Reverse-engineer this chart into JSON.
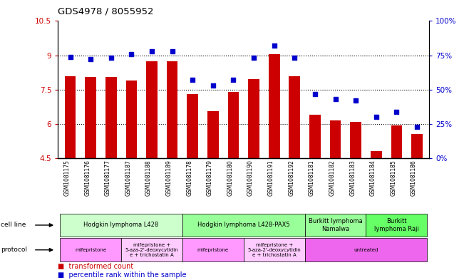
{
  "title": "GDS4978 / 8055952",
  "samples": [
    "GSM1081175",
    "GSM1081176",
    "GSM1081177",
    "GSM1081187",
    "GSM1081188",
    "GSM1081189",
    "GSM1081178",
    "GSM1081179",
    "GSM1081180",
    "GSM1081190",
    "GSM1081191",
    "GSM1081192",
    "GSM1081181",
    "GSM1081182",
    "GSM1081183",
    "GSM1081184",
    "GSM1081185",
    "GSM1081186"
  ],
  "bar_values": [
    8.1,
    8.05,
    8.05,
    7.9,
    8.75,
    8.75,
    7.3,
    6.55,
    7.4,
    7.95,
    9.05,
    8.1,
    6.4,
    6.15,
    6.1,
    4.8,
    5.95,
    5.55
  ],
  "dot_values": [
    74,
    72,
    73,
    76,
    78,
    78,
    57,
    53,
    57,
    73,
    82,
    73,
    47,
    43,
    42,
    30,
    34,
    23
  ],
  "bar_color": "#cc0000",
  "dot_color": "#0000cc",
  "ylim_left": [
    4.5,
    10.5
  ],
  "ylim_right": [
    0,
    100
  ],
  "yticks_left": [
    4.5,
    6.0,
    7.5,
    9.0,
    10.5
  ],
  "yticks_right": [
    0,
    25,
    50,
    75,
    100
  ],
  "ytick_labels_left": [
    "4.5",
    "6",
    "7.5",
    "9",
    "10.5"
  ],
  "ytick_labels_right": [
    "0%",
    "25%",
    "50%",
    "75%",
    "100%"
  ],
  "cell_line_groups": [
    {
      "label": "Hodgkin lymphoma L428",
      "start": 0,
      "end": 6,
      "color": "#ccffcc"
    },
    {
      "label": "Hodgkin lymphoma L428-PAX5",
      "start": 6,
      "end": 12,
      "color": "#99ff99"
    },
    {
      "label": "Burkitt lymphoma\nNamalwa",
      "start": 12,
      "end": 15,
      "color": "#99ff99"
    },
    {
      "label": "Burkitt\nlymphoma Raji",
      "start": 15,
      "end": 18,
      "color": "#66ff66"
    }
  ],
  "protocol_groups": [
    {
      "label": "mifepristone",
      "start": 0,
      "end": 3,
      "color": "#ff99ff"
    },
    {
      "label": "mifepristone +\n5-aza-2'-deoxycytidin\ne + trichostatin A",
      "start": 3,
      "end": 6,
      "color": "#ffccff"
    },
    {
      "label": "mifepristone",
      "start": 6,
      "end": 9,
      "color": "#ff99ff"
    },
    {
      "label": "mifepristone +\n5-aza-2'-deoxycytidin\ne + trichostatin A",
      "start": 9,
      "end": 12,
      "color": "#ffccff"
    },
    {
      "label": "untreated",
      "start": 12,
      "end": 18,
      "color": "#ee66ee"
    }
  ],
  "legend_red_label": "transformed count",
  "legend_blue_label": "percentile rank within the sample"
}
